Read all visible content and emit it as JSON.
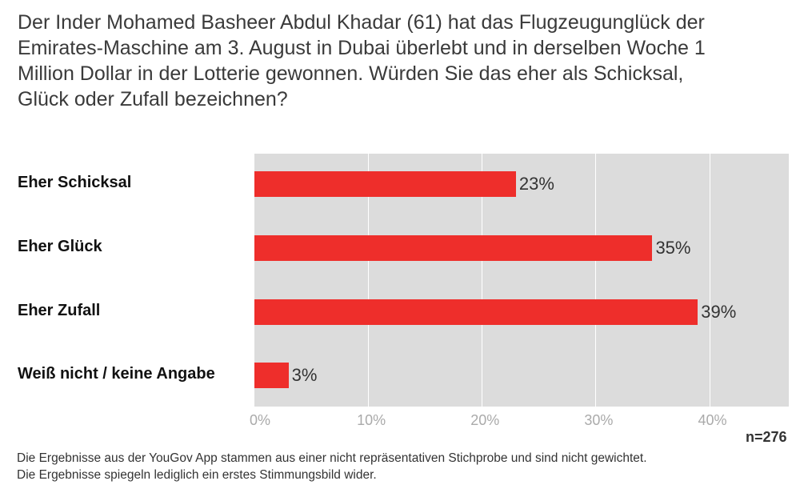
{
  "title": "Der Inder Mohamed Basheer Abdul Khadar (61) hat das Flugzeugunglück der Emirates-Maschine am 3. August in Dubai überlebt und in derselben Woche 1 Million Dollar in der Lotterie gewonnen. Würden Sie das eher als Schicksal, Glück oder Zufall bezeichnen?",
  "chart_data": {
    "type": "bar",
    "orientation": "horizontal",
    "categories": [
      "Eher Schicksal",
      "Eher Glück",
      "Eher Zufall",
      "Weiß nicht / keine Angabe"
    ],
    "values": [
      23,
      35,
      39,
      3
    ],
    "value_labels": [
      "23%",
      "35%",
      "39%",
      "3%"
    ],
    "xlim": [
      0,
      47
    ],
    "xticks": [
      0,
      10,
      20,
      30,
      40
    ],
    "xtick_labels": [
      "0%",
      "10%",
      "20%",
      "30%",
      "40%"
    ],
    "grid": true,
    "bar_color": "#ee2e2b",
    "plot_background": "#dcdcdc"
  },
  "sample_size": "n=276",
  "footnote": {
    "line1": "Die Ergebnisse aus der YouGov App stammen aus einer nicht repräsentativen Stichprobe und sind nicht gewichtet.",
    "line2": "Die Ergebnisse spiegeln lediglich ein erstes Stimmungsbild wider."
  }
}
